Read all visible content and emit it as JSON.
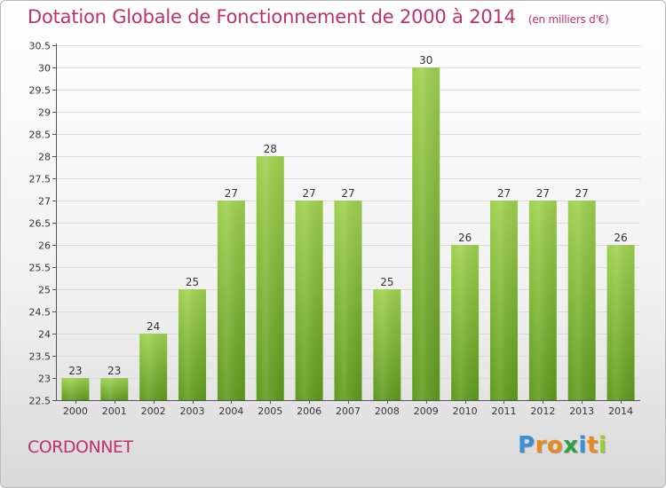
{
  "title": "Dotation Globale de Fonctionnement de 2000 à 2014",
  "title_unit": "(en milliers d'€)",
  "commune": "CORDONNET",
  "logo": {
    "letters": [
      "P",
      "r",
      "o",
      "x",
      "i",
      "t",
      "i"
    ],
    "colors": [
      "#3b8ed8",
      "#e8891f",
      "#e8891f",
      "#2f9e44",
      "#3b8ed8",
      "#e8891f",
      "#9acd32"
    ]
  },
  "colors": {
    "title": "#c0306a",
    "bar_top": "#9fd14f",
    "bar_bottom": "#5e9a1c"
  },
  "chart_data": {
    "type": "bar",
    "categories": [
      "2000",
      "2001",
      "2002",
      "2003",
      "2004",
      "2005",
      "2006",
      "2007",
      "2008",
      "2009",
      "2010",
      "2011",
      "2012",
      "2013",
      "2014"
    ],
    "values": [
      23,
      23,
      24,
      25,
      27,
      28,
      27,
      27,
      25,
      30,
      26,
      27,
      27,
      27,
      26
    ],
    "value_labels": [
      "23",
      "23",
      "24",
      "25",
      "27",
      "28",
      "27",
      "27",
      "25",
      "30",
      "26",
      "27",
      "27",
      "27",
      "26"
    ],
    "yticks": [
      "22.5",
      "23",
      "23.5",
      "24",
      "24.5",
      "25",
      "25.5",
      "26",
      "26.5",
      "27",
      "27.5",
      "28",
      "28.5",
      "29",
      "29.5",
      "30",
      "30.5"
    ],
    "ylim": [
      22.5,
      30.5
    ],
    "grid": true,
    "xlabel": "",
    "ylabel": ""
  }
}
